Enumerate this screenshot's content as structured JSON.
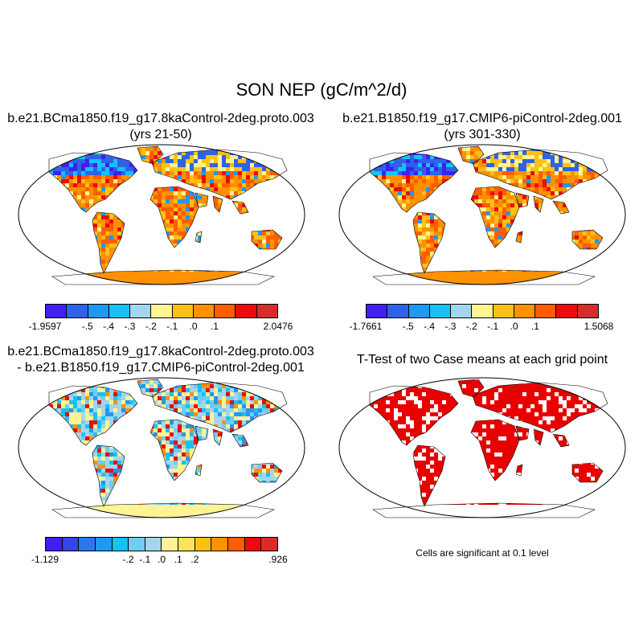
{
  "title": "SON NEP (gC/m^2/d)",
  "panels": {
    "top_left": {
      "title_line1": "b.e21.BCma1850.f19_g17.8kaControl-2deg.proto.003",
      "title_line2": "(yrs 21-50)"
    },
    "top_right": {
      "title_line1": "b.e21.B1850.f19_g17.CMIP6-piControl-2deg.001",
      "title_line2": "(yrs 301-330)"
    },
    "bottom_left": {
      "title_line1": "b.e21.BCma1850.f19_g17.8kaControl-2deg.proto.003",
      "title_line2": "- b.e21.B1850.f19_g17.CMIP6-piControl-2deg.001"
    },
    "bottom_right": {
      "title_line1": "T-Test of two Case means at each grid point",
      "note": "Cells are significant at 0.1 level"
    }
  },
  "colorbars": {
    "top_left": {
      "colors": [
        "#3f1ff2",
        "#2e62e8",
        "#1f98f0",
        "#15c2f5",
        "#a3d6ee",
        "#fff393",
        "#fdc116",
        "#fe9100",
        "#fe5e00",
        "#ee0a0a",
        "#d62c2c"
      ],
      "labels": [
        "-1.9597",
        "-.5",
        "-.4",
        "-.3",
        "-.2",
        "-.1",
        ".0",
        ".1",
        "2.0476"
      ]
    },
    "top_right": {
      "colors": [
        "#3f1ff2",
        "#2e62e8",
        "#1f98f0",
        "#15c2f5",
        "#a3d6ee",
        "#fff393",
        "#fdc116",
        "#fe9100",
        "#fe5e00",
        "#ee0a0a",
        "#d62c2c"
      ],
      "labels": [
        "-1.7661",
        "-.5",
        "-.4",
        "-.3",
        "-.2",
        "-.1",
        ".0",
        ".1",
        "1.5068"
      ]
    },
    "bottom_left": {
      "colors": [
        "#3f1ff2",
        "#3346e8",
        "#2a77ec",
        "#1f98f0",
        "#15c2f5",
        "#6fcdf2",
        "#a3d6ee",
        "#fff393",
        "#fde35a",
        "#fdc116",
        "#fe9100",
        "#fe5e00",
        "#ee0a0a",
        "#d62c2c"
      ],
      "labels": [
        "-1.129",
        "-.2",
        "-.1",
        ".0",
        ".1",
        ".2",
        ".926"
      ]
    }
  },
  "map_colors": {
    "ocean": "#ffffff",
    "red": "#e80000",
    "orange": "#ff8c00",
    "yellow": "#fde35a",
    "lightyellow": "#fff393",
    "blue": "#2e62e8",
    "lightblue": "#a3d6ee"
  }
}
